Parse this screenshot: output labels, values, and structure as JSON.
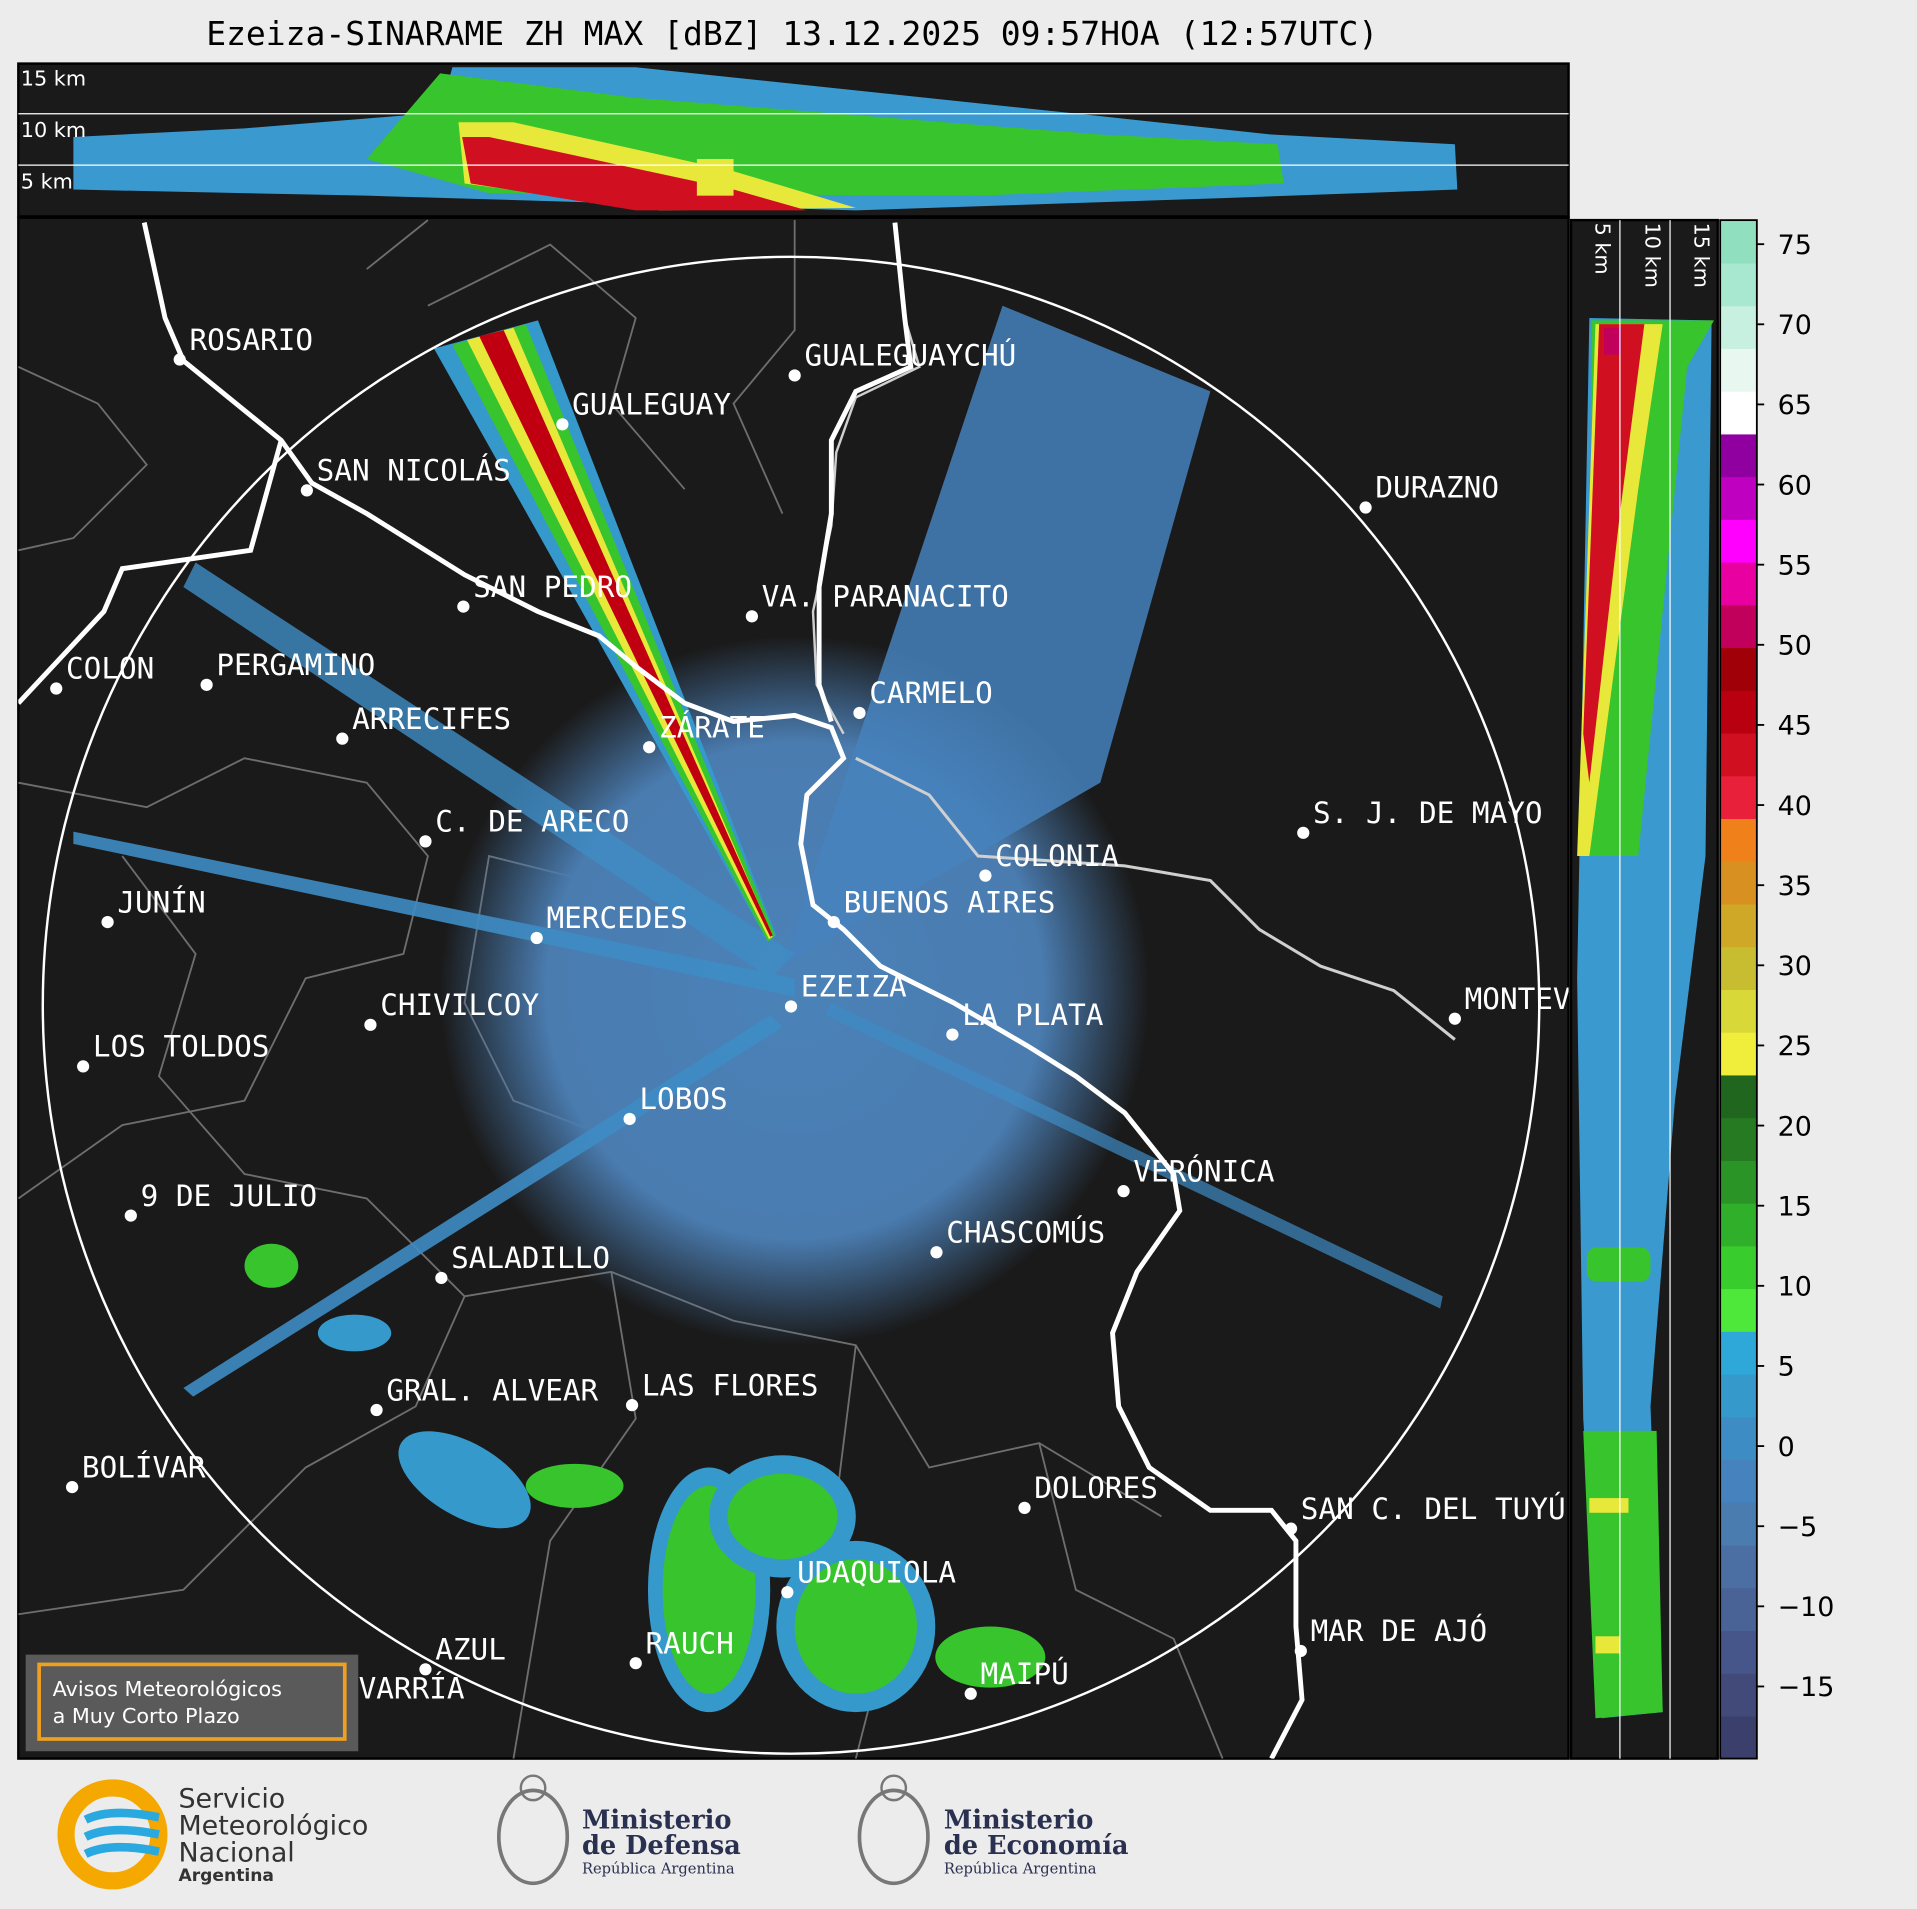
{
  "title": "Ezeiza-SINARAME ZH MAX [dBZ] 13.12.2025 09:57HOA (12:57UTC)",
  "top_panel": {
    "height_labels": [
      "15 km",
      "10 km",
      "5 km"
    ]
  },
  "side_panel": {
    "height_labels": [
      "5 km",
      "10 km",
      "15 km"
    ]
  },
  "cities": [
    "ROSARIO",
    "GUALEGUAYCHÚ",
    "GUALEGUAY",
    "SAN NICOLÁS",
    "DURAZNO",
    "SAN PEDRO",
    "VA. PARANACITO",
    "COLON",
    "PERGAMINO",
    "CARMELO",
    "ARRECIFES",
    "ZÁRATE",
    "S. J. DE MAYO",
    "C. DE ARECO",
    "COLONIA",
    "JUNÍN",
    "BUENOS AIRES",
    "MERCEDES",
    "EZEIZA",
    "CHIVILCOY",
    "MONTEVIDEO",
    "LA PLATA",
    "LOS TOLDOS",
    "LOBOS",
    "VERÓNICA",
    "9 DE JULIO",
    "CHASCOMÚS",
    "SALADILLO",
    "GRAL. ALVEAR",
    "LAS FLORES",
    "BOLÍVAR",
    "DOLORES",
    "SAN C. DEL TUYÚ",
    "UDAQUIOLA",
    "MAR DE AJÓ",
    "AZUL",
    "RAUCH",
    "MAIPÚ",
    "OLAVARRÍA"
  ],
  "colorbar": {
    "lim": [
      -19.5,
      76.5
    ],
    "ticks": [
      75,
      70,
      65,
      60,
      55,
      50,
      45,
      40,
      35,
      30,
      25,
      20,
      15,
      10,
      5,
      0,
      {
        "value": -5,
        "label": "−5"
      },
      {
        "value": -10,
        "label": "−10"
      },
      {
        "value": -15,
        "label": "−15"
      }
    ],
    "colors": [
      "#3a3f6b",
      "#414a78",
      "#46558a",
      "#4a6396",
      "#4b6fa2",
      "#4a7cb0",
      "#4682bd",
      "#3e8cc4",
      "#3699cc",
      "#2ea8d8",
      "#4de83a",
      "#38cc2c",
      "#30b02a",
      "#2a9426",
      "#257a22",
      "#20661e",
      "#f0ee3a",
      "#d8d838",
      "#c8bc30",
      "#d0a828",
      "#d89020",
      "#f0801a",
      "#e8203a",
      "#d01020",
      "#b80010",
      "#a00008",
      "#c0005a",
      "#e800a0",
      "#ff00ff",
      "#c000c0",
      "#9000a0",
      "#ffffff",
      "#e8f8f0",
      "#c8f0e0",
      "#a8e8d0",
      "#90e0c0"
    ]
  },
  "notice": {
    "lines": [
      "Avisos Meteorológicos",
      "a Muy Corto Plazo"
    ]
  },
  "logos": {
    "smn": [
      "Servicio",
      "Meteorológico",
      "Nacional",
      "Argentina"
    ],
    "defensa": [
      "Ministerio",
      "de Defensa",
      "República Argentina"
    ],
    "economia": [
      "Ministerio",
      "de Economía",
      "República Argentina"
    ]
  }
}
